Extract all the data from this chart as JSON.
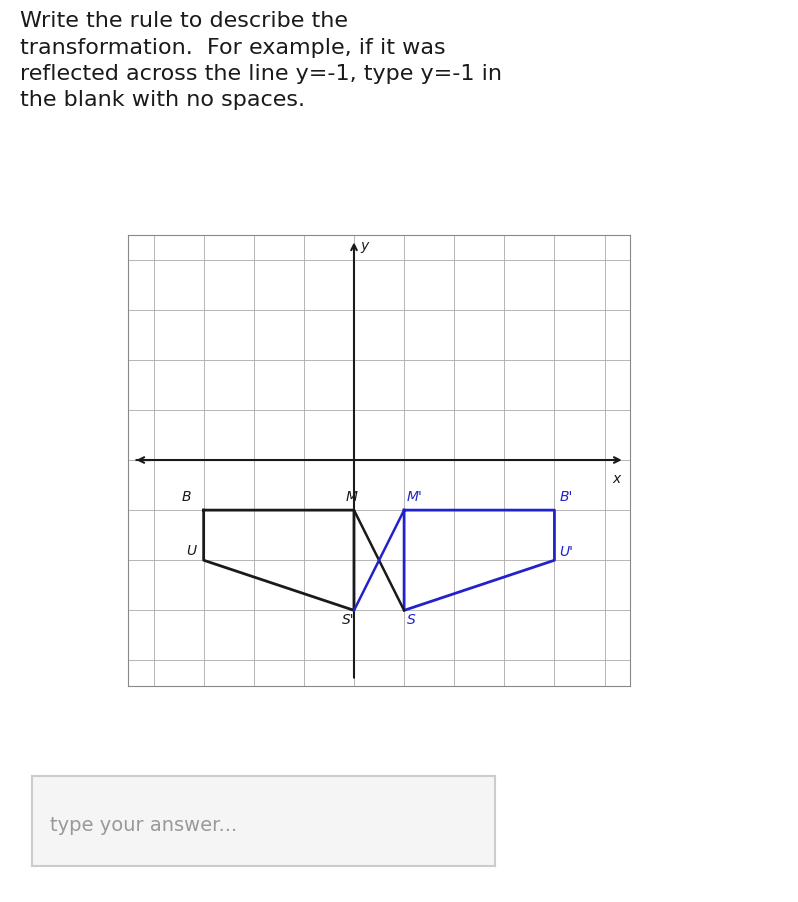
{
  "title_text": "Write the rule to describe the\ntransformation.  For example, if it was\nreflected across the line y=-1, type y=-1 in\nthe blank with no spaces.",
  "answer_placeholder": "type your answer...",
  "grid_xlim": [
    -4.5,
    5.5
  ],
  "grid_ylim": [
    -4.5,
    4.5
  ],
  "grid_x_ticks": [
    -4,
    -3,
    -2,
    -1,
    0,
    1,
    2,
    3,
    4,
    5
  ],
  "grid_y_ticks": [
    -4,
    -3,
    -2,
    -1,
    0,
    1,
    2,
    3,
    4
  ],
  "orig_B": [
    -3,
    -1
  ],
  "orig_M": [
    0,
    -1
  ],
  "orig_U": [
    -3,
    -2
  ],
  "orig_S": [
    0,
    -3
  ],
  "trans_M2": [
    1,
    -1
  ],
  "trans_B2": [
    4,
    -1
  ],
  "trans_U2": [
    4,
    -2
  ],
  "trans_S2": [
    1,
    -3
  ],
  "orig_color": "#1a1a1a",
  "trans_color": "#2222cc",
  "axis_color": "#1a1a1a",
  "grid_color": "#aaaaaa",
  "grid_linewidth": 0.6,
  "shape_linewidth": 2.0,
  "diag_linewidth": 1.8,
  "background_color": "#ffffff",
  "label_fontsize": 10,
  "answer_box_color": "#f5f5f5",
  "answer_box_border": "#cccccc",
  "title_fontsize": 16
}
